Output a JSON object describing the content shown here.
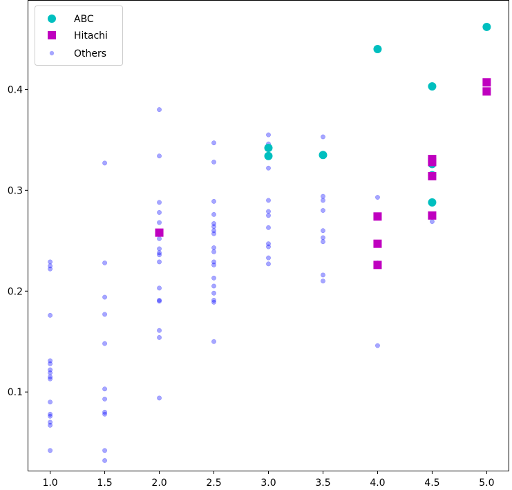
{
  "chart_data": {
    "type": "scatter",
    "title": "",
    "xlabel": "",
    "ylabel": "",
    "xlim": [
      0.8,
      5.2
    ],
    "ylim": [
      0.022,
      0.488
    ],
    "xticks": [
      "1.0",
      "1.5",
      "2.0",
      "2.5",
      "3.0",
      "3.5",
      "4.0",
      "4.5",
      "5.0"
    ],
    "yticks": [
      "0.1",
      "0.2",
      "0.3",
      "0.4"
    ],
    "grid": false,
    "legend_position": "top-left",
    "series": [
      {
        "name": "ABC",
        "marker": "circle",
        "color": "#00bfbf",
        "points": [
          [
            3.0,
            0.342
          ],
          [
            3.0,
            0.334
          ],
          [
            3.5,
            0.335
          ],
          [
            4.0,
            0.44
          ],
          [
            4.5,
            0.403
          ],
          [
            4.5,
            0.326
          ],
          [
            4.5,
            0.315
          ],
          [
            4.5,
            0.288
          ],
          [
            5.0,
            0.462
          ]
        ]
      },
      {
        "name": "Hitachi",
        "marker": "square",
        "color": "#bf00bf",
        "points": [
          [
            2.0,
            0.258
          ],
          [
            4.0,
            0.274
          ],
          [
            4.0,
            0.247
          ],
          [
            4.0,
            0.226
          ],
          [
            4.5,
            0.331
          ],
          [
            4.5,
            0.328
          ],
          [
            4.5,
            0.314
          ],
          [
            4.5,
            0.275
          ],
          [
            5.0,
            0.407
          ],
          [
            5.0,
            0.398
          ]
        ]
      },
      {
        "name": "Others",
        "marker": "small-circle",
        "color": "#0000ff",
        "points": [
          [
            1.0,
            0.229
          ],
          [
            1.0,
            0.225
          ],
          [
            1.0,
            0.222
          ],
          [
            1.0,
            0.176
          ],
          [
            1.0,
            0.131
          ],
          [
            1.0,
            0.128
          ],
          [
            1.0,
            0.122
          ],
          [
            1.0,
            0.119
          ],
          [
            1.0,
            0.115
          ],
          [
            1.0,
            0.113
          ],
          [
            1.0,
            0.09
          ],
          [
            1.0,
            0.078
          ],
          [
            1.0,
            0.076
          ],
          [
            1.0,
            0.07
          ],
          [
            1.0,
            0.067
          ],
          [
            1.0,
            0.042
          ],
          [
            1.5,
            0.327
          ],
          [
            1.5,
            0.228
          ],
          [
            1.5,
            0.194
          ],
          [
            1.5,
            0.177
          ],
          [
            1.5,
            0.148
          ],
          [
            1.5,
            0.103
          ],
          [
            1.5,
            0.093
          ],
          [
            1.5,
            0.08
          ],
          [
            1.5,
            0.078
          ],
          [
            1.5,
            0.042
          ],
          [
            1.5,
            0.032
          ],
          [
            2.0,
            0.38
          ],
          [
            2.0,
            0.334
          ],
          [
            2.0,
            0.288
          ],
          [
            2.0,
            0.278
          ],
          [
            2.0,
            0.268
          ],
          [
            2.0,
            0.252
          ],
          [
            2.0,
            0.242
          ],
          [
            2.0,
            0.238
          ],
          [
            2.0,
            0.236
          ],
          [
            2.0,
            0.229
          ],
          [
            2.0,
            0.203
          ],
          [
            2.0,
            0.191
          ],
          [
            2.0,
            0.19
          ],
          [
            2.0,
            0.161
          ],
          [
            2.0,
            0.154
          ],
          [
            2.0,
            0.094
          ],
          [
            2.5,
            0.347
          ],
          [
            2.5,
            0.328
          ],
          [
            2.5,
            0.289
          ],
          [
            2.5,
            0.276
          ],
          [
            2.5,
            0.267
          ],
          [
            2.5,
            0.264
          ],
          [
            2.5,
            0.26
          ],
          [
            2.5,
            0.257
          ],
          [
            2.5,
            0.243
          ],
          [
            2.5,
            0.239
          ],
          [
            2.5,
            0.229
          ],
          [
            2.5,
            0.226
          ],
          [
            2.5,
            0.213
          ],
          [
            2.5,
            0.205
          ],
          [
            2.5,
            0.198
          ],
          [
            2.5,
            0.191
          ],
          [
            2.5,
            0.189
          ],
          [
            2.5,
            0.15
          ],
          [
            3.0,
            0.355
          ],
          [
            3.0,
            0.346
          ],
          [
            3.0,
            0.322
          ],
          [
            3.0,
            0.29
          ],
          [
            3.0,
            0.279
          ],
          [
            3.0,
            0.275
          ],
          [
            3.0,
            0.263
          ],
          [
            3.0,
            0.247
          ],
          [
            3.0,
            0.244
          ],
          [
            3.0,
            0.233
          ],
          [
            3.0,
            0.227
          ],
          [
            3.5,
            0.353
          ],
          [
            3.5,
            0.294
          ],
          [
            3.5,
            0.29
          ],
          [
            3.5,
            0.28
          ],
          [
            3.5,
            0.26
          ],
          [
            3.5,
            0.253
          ],
          [
            3.5,
            0.249
          ],
          [
            3.5,
            0.216
          ],
          [
            3.5,
            0.21
          ],
          [
            4.0,
            0.293
          ],
          [
            4.0,
            0.228
          ],
          [
            4.0,
            0.146
          ],
          [
            4.5,
            0.269
          ]
        ]
      }
    ]
  }
}
